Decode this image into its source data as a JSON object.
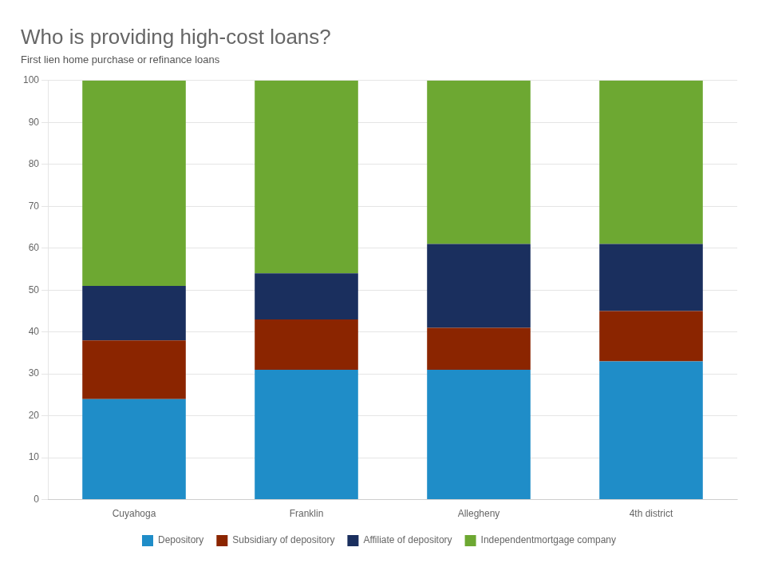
{
  "chart_data": {
    "type": "bar",
    "title": "Who is providing high-cost loans?",
    "subtitle": "First lien home purchase or refinance loans",
    "categories": [
      "Cuyahoga",
      "Franklin",
      "Allegheny",
      "4th district"
    ],
    "series": [
      {
        "name": "Depository",
        "color": "#1f8dc8",
        "values": [
          24,
          31,
          31,
          33
        ]
      },
      {
        "name": "Subsidiary of depository",
        "color": "#8B2500",
        "values": [
          14,
          12,
          10,
          12
        ]
      },
      {
        "name": "Affiliate of depository",
        "color": "#1a2f5e",
        "values": [
          13,
          11,
          20,
          16
        ]
      },
      {
        "name": "Independentmortgage company",
        "color": "#6da832",
        "values": [
          49,
          46,
          39,
          39
        ]
      }
    ],
    "stacked": true,
    "ylim": [
      0,
      100
    ],
    "yticks": [
      0,
      10,
      20,
      30,
      40,
      50,
      60,
      70,
      80,
      90,
      100
    ],
    "grid": true,
    "legend": "bottom"
  }
}
